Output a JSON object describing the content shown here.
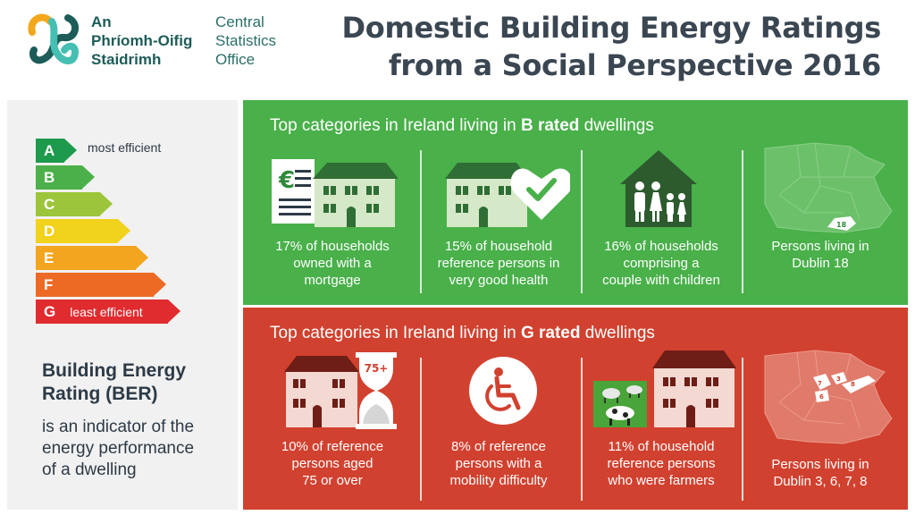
{
  "header": {
    "logo_irish": [
      "An",
      "Phríomh-Oifig",
      "Staidrimh"
    ],
    "logo_english": [
      "Central",
      "Statistics",
      "Office"
    ],
    "title_line1": "Domestic Building Energy Ratings",
    "title_line2": "from a Social Perspective 2016"
  },
  "ber_scale": {
    "letters": [
      "A",
      "B",
      "C",
      "D",
      "E",
      "F",
      "G"
    ],
    "colors": [
      "#1d9a4b",
      "#4bb04a",
      "#9cc53b",
      "#f1d21c",
      "#f3a51f",
      "#ec6a24",
      "#e02b2f"
    ],
    "top_label": "most efficient",
    "bottom_label": "least efficient"
  },
  "ber_info": {
    "heading_line1": "Building Energy",
    "heading_line2": "Rating (BER)",
    "desc_line1": "is an indicator of the",
    "desc_line2": "energy performance",
    "desc_line3": "of a dwelling"
  },
  "b_section": {
    "title_pre": "Top categories in Ireland living in ",
    "title_bold": "B rated",
    "title_post": " dwellings",
    "color": "#49b04a",
    "items": [
      {
        "icon": "mortgage-house-icon",
        "lines": [
          "17% of households",
          "owned with a",
          "mortgage"
        ]
      },
      {
        "icon": "health-house-icon",
        "lines": [
          "15% of household",
          "reference persons in",
          "very good health"
        ]
      },
      {
        "icon": "family-house-icon",
        "lines": [
          "16% of households",
          "comprising a",
          "couple with children"
        ]
      },
      {
        "icon": "dublin-map-icon",
        "map_label": "18",
        "lines": [
          "Persons living in",
          "Dublin 18"
        ]
      }
    ]
  },
  "g_section": {
    "title_pre": "Top categories in Ireland living in ",
    "title_bold": "G rated",
    "title_post": " dwellings",
    "color": "#d1412f",
    "items": [
      {
        "icon": "hourglass-house-icon",
        "badge": "75+",
        "lines": [
          "10% of reference",
          "persons aged",
          "75 or over"
        ]
      },
      {
        "icon": "wheelchair-icon",
        "lines": [
          "8% of reference",
          "persons with a",
          "mobility difficulty"
        ]
      },
      {
        "icon": "farm-house-icon",
        "lines": [
          "11% of household",
          "reference persons",
          "who were farmers"
        ]
      },
      {
        "icon": "dublin-map-icon",
        "map_labels": [
          "7",
          "3",
          "6",
          "8"
        ],
        "lines": [
          "Persons living in",
          "Dublin 3, 6, 7, 8"
        ]
      }
    ]
  }
}
